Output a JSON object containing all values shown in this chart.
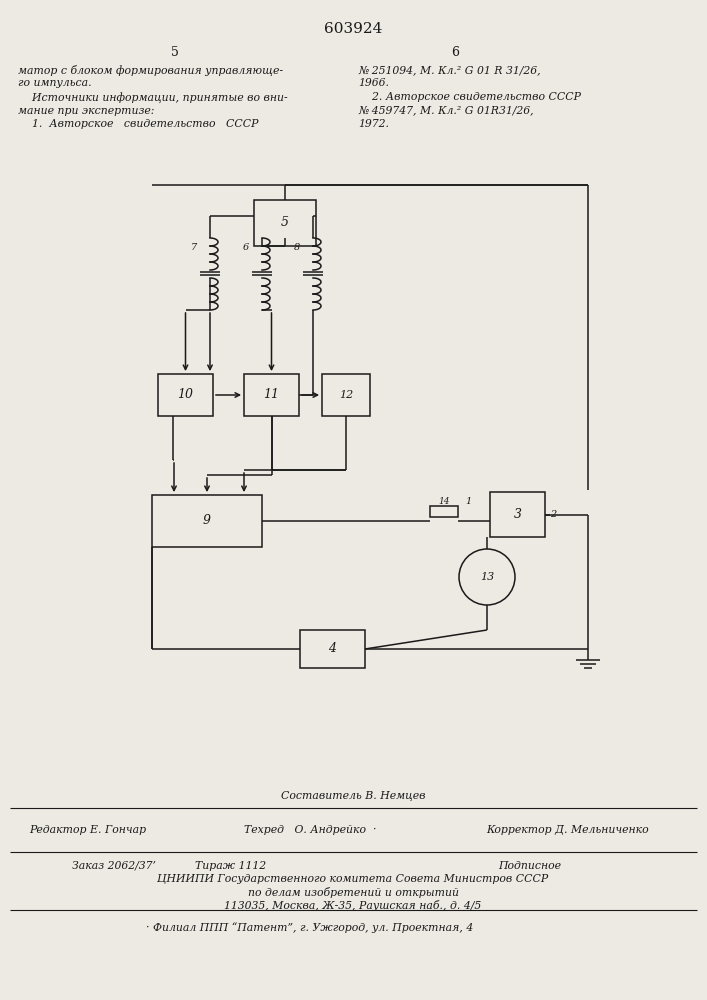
{
  "bg_color": "#ede9e3",
  "line_color": "#1a1a1a",
  "title_text": "603924",
  "col_left_header": "5",
  "col_right_header": "6",
  "text_left": [
    "матор с блоком формирования управляюще-",
    "го импульса.",
    "    Источники информации, принятые во вни-",
    "мание при экспертизе:",
    "    1.  Авторское   свидетельство   СССР"
  ],
  "text_right": [
    "№ 251094, М. Кл.² G 01 R 31/26,",
    "1966.",
    "    2. Авторское свидетельство СССР",
    "№ 459747, М. Кл.² G 01R31/26,",
    "1972."
  ],
  "footer_sestavitel": "Составитель В. Немцев",
  "footer_editor": "Редактор Е. Гончар",
  "footer_tekhred": "Техред   О. Андрейко  ·",
  "footer_korrektor": "Корректор Д. Мельниченко",
  "footer_zakaz": "Заказ 2062/37’",
  "footer_tirazh": "Тираж 1112",
  "footer_podpisnoe": "Подписное",
  "footer_cniip": "ЦНИИПИ Государственного комитета Совета Министров СССР",
  "footer_po_delam": "по делам изобретений и открытий",
  "footer_address": "113035, Москва, Ж-35, Раушская наб., д. 4/5",
  "footer_filial": "· Филиал ППП “Патент”, г. Ужгород, ул. Проектная, 4"
}
